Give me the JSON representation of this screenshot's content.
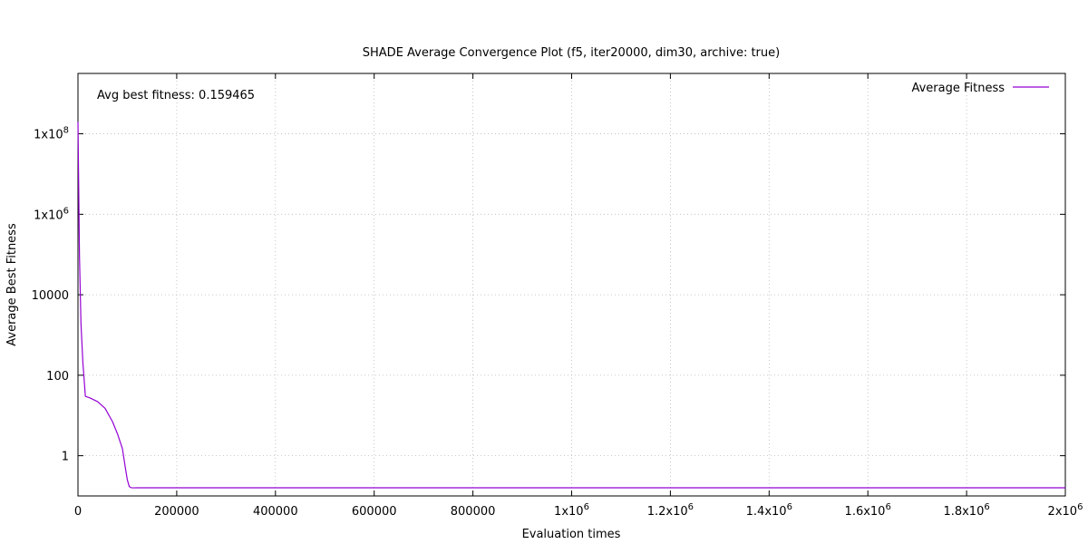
{
  "chart_data": {
    "type": "line",
    "title": "SHADE Average Convergence Plot (f5, iter20000, dim30, archive: true)",
    "xlabel": "Evaluation times",
    "ylabel": "Average Best Fitness",
    "annotation": "Avg best fitness: 0.159465",
    "legend": {
      "position": "top-right",
      "entries": [
        "Average Fitness"
      ]
    },
    "xlim": [
      0,
      2000000
    ],
    "ylim_log10": [
      -1.0,
      9.5
    ],
    "yscale": "log",
    "grid": true,
    "x_ticks": [
      {
        "value": 0,
        "label": "0"
      },
      {
        "value": 200000,
        "label": "200000"
      },
      {
        "value": 400000,
        "label": "400000"
      },
      {
        "value": 600000,
        "label": "600000"
      },
      {
        "value": 800000,
        "label": "800000"
      },
      {
        "value": 1000000,
        "label": "1x10",
        "exp": "6"
      },
      {
        "value": 1200000,
        "label": "1.2x10",
        "exp": "6"
      },
      {
        "value": 1400000,
        "label": "1.4x10",
        "exp": "6"
      },
      {
        "value": 1600000,
        "label": "1.6x10",
        "exp": "6"
      },
      {
        "value": 1800000,
        "label": "1.8x10",
        "exp": "6"
      },
      {
        "value": 2000000,
        "label": "2x10",
        "exp": "6"
      }
    ],
    "y_ticks": [
      {
        "value": 1,
        "label": "1"
      },
      {
        "value": 100,
        "label": "100"
      },
      {
        "value": 10000,
        "label": "10000"
      },
      {
        "value": 1000000,
        "label": "1x10",
        "exp": "6"
      },
      {
        "value": 100000000,
        "label": "1x10",
        "exp": "8"
      }
    ],
    "series": [
      {
        "name": "Average Fitness",
        "color": "#9400d3",
        "x": [
          0,
          3000,
          6000,
          10000,
          15000,
          25000,
          40000,
          55000,
          70000,
          80000,
          90000,
          96000,
          100000,
          104000,
          108000,
          112000,
          120000,
          200000,
          500000,
          1000000,
          1500000,
          2000000
        ],
        "y": [
          200000000,
          100000,
          2000,
          200,
          30,
          27,
          22,
          15,
          7,
          3.5,
          1.5,
          0.5,
          0.25,
          0.17,
          0.16,
          0.159,
          0.159465,
          0.159465,
          0.159465,
          0.159465,
          0.159465,
          0.159465
        ]
      }
    ]
  }
}
